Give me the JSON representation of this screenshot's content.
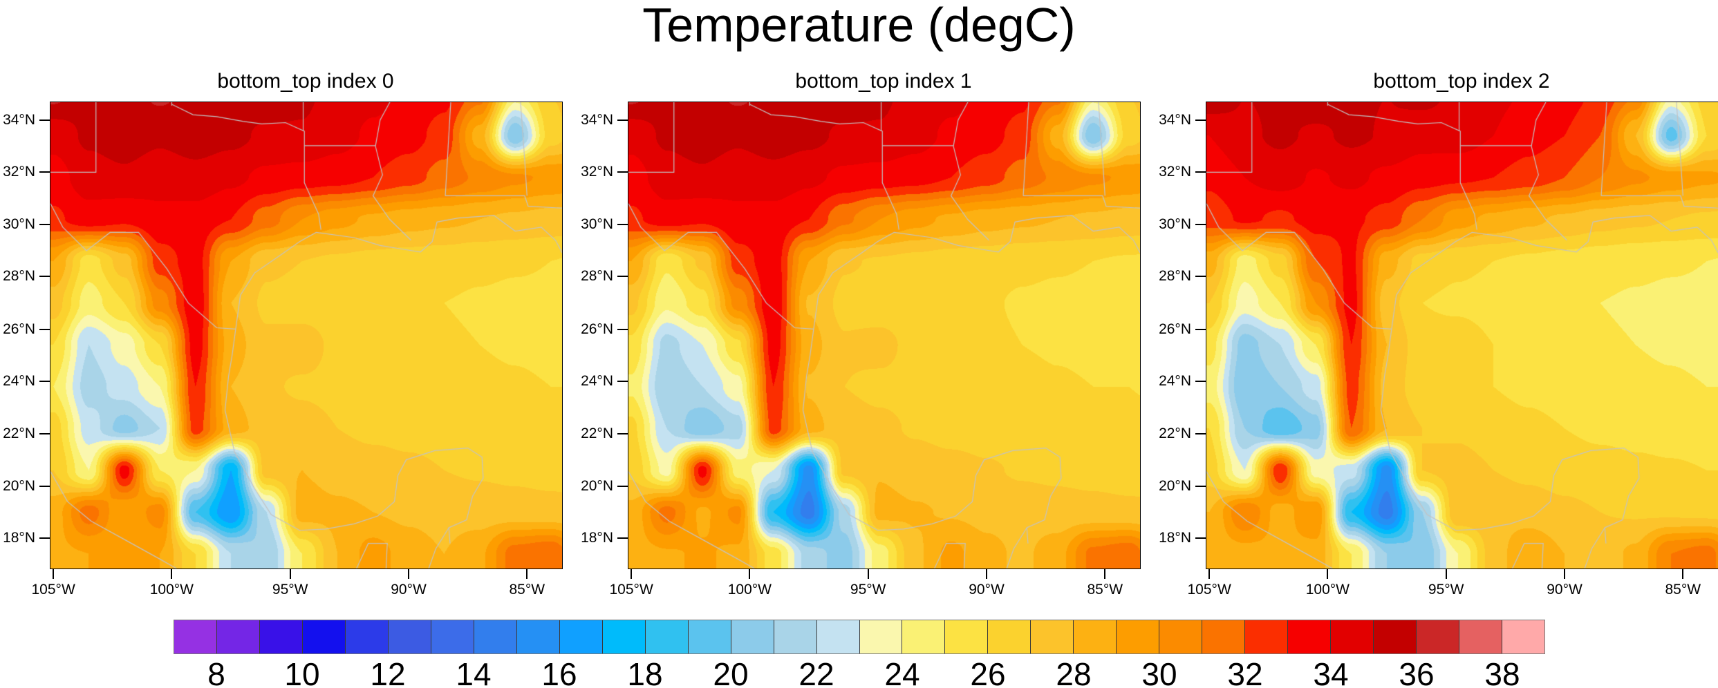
{
  "chart_data": {
    "type": "heatmap",
    "suptitle": "Temperature (degC)",
    "panels": [
      {
        "title": "bottom_top index 0",
        "grid": [
          [
            36.3,
            35.3,
            35.5,
            36.2,
            35.6,
            35.4,
            35.7,
            35.2,
            34.6,
            34.3,
            33.8,
            33.3,
            31.5,
            24.5,
            27.0,
            27.8
          ],
          [
            34.3,
            35.2,
            35.6,
            35.2,
            35.6,
            35.3,
            34.8,
            34.9,
            34.4,
            33.8,
            33.4,
            32.6,
            28.5,
            20.0,
            26.5,
            28.0
          ],
          [
            33.6,
            34.5,
            34.8,
            34.3,
            34.6,
            34.2,
            33.8,
            33.6,
            33.4,
            33.0,
            32.4,
            31.6,
            30.8,
            30.2,
            29.8,
            29.4
          ],
          [
            32.8,
            33.6,
            33.2,
            33.8,
            33.6,
            33.0,
            31.5,
            30.0,
            29.3,
            28.8,
            28.4,
            28.2,
            28.0,
            27.8,
            27.6,
            27.4
          ],
          [
            29.0,
            25.5,
            27.5,
            32.5,
            33.5,
            29.0,
            27.2,
            27.0,
            26.8,
            26.6,
            26.5,
            26.4,
            26.2,
            26.1,
            26.0,
            25.9
          ],
          [
            27.5,
            24.5,
            26.0,
            30.5,
            33.8,
            28.0,
            26.8,
            26.6,
            26.5,
            26.4,
            26.2,
            26.0,
            25.9,
            25.8,
            25.8,
            25.7
          ],
          [
            26.0,
            22.0,
            23.5,
            26.0,
            33.5,
            28.5,
            27.2,
            27.4,
            26.8,
            26.5,
            26.3,
            26.1,
            26.0,
            25.9,
            25.8,
            25.8
          ],
          [
            25.0,
            21.5,
            22.5,
            24.0,
            33.0,
            28.0,
            27.1,
            26.9,
            26.8,
            26.6,
            26.5,
            26.4,
            26.2,
            26.1,
            26.0,
            26.0
          ],
          [
            26.5,
            22.5,
            20.5,
            22.0,
            32.5,
            28.5,
            27.5,
            27.3,
            27.0,
            26.8,
            26.7,
            26.6,
            26.5,
            26.4,
            26.3,
            26.2
          ],
          [
            27.0,
            24.0,
            33.5,
            25.0,
            24.0,
            17.0,
            27.5,
            28.0,
            27.6,
            27.4,
            27.2,
            27.0,
            26.9,
            26.8,
            26.7,
            26.6
          ],
          [
            28.5,
            31.5,
            29.0,
            30.5,
            19.0,
            16.0,
            22.0,
            28.5,
            28.2,
            28.0,
            27.8,
            27.6,
            27.5,
            27.4,
            27.3,
            27.2
          ],
          [
            28.8,
            29.0,
            29.2,
            29.0,
            26.0,
            22.0,
            21.0,
            25.0,
            28.0,
            29.5,
            28.5,
            28.0,
            28.8,
            31.5,
            32.0,
            29.0
          ]
        ]
      },
      {
        "title": "bottom_top index 1",
        "grid": [
          [
            36.3,
            35.3,
            35.5,
            36.2,
            35.6,
            35.4,
            35.7,
            35.2,
            34.6,
            34.3,
            33.8,
            33.3,
            31.5,
            24.5,
            27.0,
            27.8
          ],
          [
            34.3,
            35.2,
            35.6,
            35.2,
            35.6,
            35.3,
            34.8,
            34.9,
            34.4,
            33.8,
            33.4,
            32.6,
            28.5,
            20.0,
            26.5,
            28.0
          ],
          [
            33.6,
            34.5,
            34.8,
            34.3,
            34.6,
            34.2,
            33.8,
            33.6,
            33.4,
            33.0,
            32.4,
            31.6,
            30.8,
            30.2,
            29.8,
            29.4
          ],
          [
            32.8,
            33.6,
            33.2,
            33.8,
            33.6,
            33.0,
            31.2,
            30.0,
            29.3,
            28.8,
            28.4,
            28.2,
            28.0,
            27.8,
            27.6,
            27.4
          ],
          [
            29.0,
            25.2,
            27.2,
            32.5,
            33.6,
            29.0,
            27.1,
            26.9,
            26.7,
            26.5,
            26.4,
            26.2,
            26.1,
            26.0,
            25.9,
            25.8
          ],
          [
            27.3,
            24.2,
            25.6,
            30.4,
            33.9,
            27.9,
            26.7,
            26.5,
            26.4,
            26.2,
            26.1,
            25.9,
            25.8,
            25.7,
            25.7,
            25.6
          ],
          [
            25.8,
            21.6,
            23.0,
            25.8,
            33.5,
            28.4,
            27.1,
            27.3,
            26.7,
            26.4,
            26.2,
            26.0,
            25.9,
            25.8,
            25.8,
            25.7
          ],
          [
            24.8,
            21.0,
            22.0,
            23.6,
            33.0,
            27.9,
            27.0,
            26.8,
            26.7,
            26.5,
            26.4,
            26.3,
            26.1,
            26.0,
            26.0,
            25.9
          ],
          [
            26.3,
            22.0,
            20.0,
            21.5,
            32.5,
            28.4,
            27.4,
            27.2,
            26.9,
            26.7,
            26.6,
            26.5,
            26.4,
            26.3,
            26.2,
            26.1
          ],
          [
            26.8,
            23.6,
            33.4,
            24.5,
            23.0,
            15.5,
            27.3,
            27.9,
            27.5,
            27.3,
            27.1,
            26.9,
            26.8,
            26.7,
            26.6,
            26.5
          ],
          [
            28.3,
            31.4,
            28.8,
            30.3,
            18.0,
            14.5,
            21.5,
            28.4,
            28.1,
            27.9,
            27.7,
            27.5,
            27.4,
            27.3,
            27.2,
            27.1
          ],
          [
            28.6,
            28.9,
            29.1,
            28.8,
            25.5,
            21.5,
            20.5,
            24.5,
            27.8,
            29.3,
            28.3,
            27.8,
            28.6,
            31.3,
            31.8,
            28.8
          ]
        ]
      },
      {
        "title": "bottom_top index 2",
        "grid": [
          [
            35.9,
            35.0,
            35.2,
            35.8,
            35.2,
            35.0,
            35.3,
            34.8,
            34.2,
            33.9,
            33.4,
            32.8,
            31.0,
            24.0,
            26.5,
            27.2
          ],
          [
            34.0,
            34.8,
            35.2,
            34.8,
            35.2,
            34.9,
            34.4,
            34.5,
            34.0,
            33.4,
            33.0,
            32.0,
            28.0,
            19.5,
            26.0,
            27.4
          ],
          [
            33.2,
            34.0,
            34.4,
            33.9,
            34.2,
            33.8,
            33.4,
            33.2,
            33.0,
            32.6,
            32.0,
            31.0,
            30.2,
            29.6,
            29.2,
            28.8
          ],
          [
            32.4,
            33.2,
            32.8,
            33.4,
            33.2,
            32.6,
            31.0,
            29.4,
            28.7,
            28.2,
            27.8,
            27.4,
            27.2,
            27.0,
            26.8,
            26.6
          ],
          [
            28.5,
            24.5,
            26.5,
            32.0,
            33.2,
            28.4,
            26.6,
            26.2,
            26.0,
            25.8,
            25.6,
            25.4,
            25.2,
            25.1,
            25.0,
            24.9
          ],
          [
            27.0,
            23.5,
            25.0,
            30.0,
            33.4,
            27.4,
            26.0,
            25.8,
            25.6,
            25.4,
            25.2,
            25.0,
            24.9,
            24.8,
            24.8,
            24.7
          ],
          [
            25.5,
            20.5,
            22.0,
            25.0,
            33.0,
            28.0,
            26.4,
            26.6,
            26.0,
            25.6,
            25.3,
            25.1,
            25.0,
            24.9,
            24.8,
            24.8
          ],
          [
            24.5,
            20.0,
            21.0,
            22.5,
            32.5,
            27.6,
            26.4,
            26.2,
            26.0,
            25.8,
            25.6,
            25.4,
            25.2,
            25.1,
            25.0,
            25.0
          ],
          [
            26.0,
            21.0,
            19.0,
            20.5,
            32.0,
            28.0,
            27.0,
            26.8,
            26.4,
            26.2,
            26.0,
            25.8,
            25.7,
            25.6,
            25.5,
            25.4
          ],
          [
            26.5,
            23.0,
            33.0,
            23.5,
            22.5,
            15.5,
            27.0,
            27.5,
            27.0,
            26.8,
            26.6,
            26.4,
            26.2,
            26.1,
            26.0,
            26.0
          ],
          [
            28.0,
            31.0,
            28.5,
            30.0,
            18.0,
            14.5,
            21.0,
            28.0,
            27.7,
            27.5,
            27.2,
            27.0,
            26.9,
            26.8,
            26.7,
            26.6
          ],
          [
            28.4,
            28.6,
            28.8,
            28.6,
            25.0,
            21.0,
            20.0,
            24.0,
            27.5,
            29.0,
            28.0,
            27.5,
            28.2,
            31.0,
            31.5,
            28.5
          ]
        ]
      }
    ],
    "grid_lons": [
      -105,
      -103.5,
      -102,
      -100.5,
      -99,
      -97.5,
      -96,
      -94.5,
      -93,
      -91.5,
      -90,
      -88.5,
      -87,
      -85.5,
      -84,
      -82.5
    ],
    "grid_lats": [
      35.0,
      33.4,
      31.8,
      30.2,
      28.6,
      27.0,
      25.4,
      23.8,
      22.2,
      20.6,
      19.0,
      17.4
    ],
    "lon_range": [
      -105.12,
      -83.52
    ],
    "lat_range": [
      34.68,
      16.84
    ],
    "x_axis": {
      "labels": [
        "105°W",
        "100°W",
        "95°W",
        "90°W",
        "85°W"
      ],
      "fractions": [
        0.0056,
        0.237,
        0.4685,
        0.7,
        0.9315
      ]
    },
    "y_axis": {
      "labels": [
        "34°N",
        "32°N",
        "30°N",
        "28°N",
        "26°N",
        "24°N",
        "22°N",
        "20°N",
        "18°N"
      ],
      "fractions": [
        0.038,
        0.15,
        0.262,
        0.374,
        0.487,
        0.599,
        0.711,
        0.823,
        0.935
      ]
    },
    "colorbar": {
      "level_min": 7,
      "level_max": 39,
      "tick_labels": [
        "8",
        "10",
        "12",
        "14",
        "16",
        "18",
        "20",
        "22",
        "24",
        "26",
        "28",
        "30",
        "32",
        "34",
        "36",
        "38"
      ],
      "colors": [
        "#9531E3",
        "#7426E6",
        "#3911E8",
        "#1310EE",
        "#2C3BE9",
        "#3C5BE3",
        "#3C6CE9",
        "#327EED",
        "#2590F4",
        "#10A0FF",
        "#00BBFB",
        "#30C1F0",
        "#5BC3EE",
        "#8CCBEA",
        "#A9D4E8",
        "#C4E2F1",
        "#FAF7AE",
        "#FAF174",
        "#FCE243",
        "#FBD22E",
        "#FCC32B",
        "#FDB112",
        "#FD9D00",
        "#FB8B00",
        "#FA7300",
        "#FB2E00",
        "#F60000",
        "#E20000",
        "#C30000",
        "#CB2727",
        "#E56161",
        "#FFA9A9"
      ]
    },
    "boundary_color": "#c3c3c3",
    "boundaries": [
      [
        [
          -103.2,
          36
        ],
        [
          -103.2,
          32
        ],
        [
          -105.12,
          32
        ]
      ],
      [
        [
          -100,
          35
        ],
        [
          -100,
          34.55
        ]
      ],
      [
        [
          -100,
          34.6
        ],
        [
          -99.1,
          34.2
        ],
        [
          -98.1,
          34.13
        ],
        [
          -97,
          33.95
        ],
        [
          -96.2,
          33.85
        ],
        [
          -95.2,
          33.9
        ],
        [
          -94.4,
          33.57
        ],
        [
          -94.4,
          31.6
        ],
        [
          -93.8,
          30.4
        ],
        [
          -93.7,
          29.8
        ]
      ],
      [
        [
          -94.45,
          35
        ],
        [
          -94.45,
          33.57
        ]
      ],
      [
        [
          -94.4,
          33.02
        ],
        [
          -91.4,
          33.02
        ]
      ],
      [
        [
          -90.6,
          35
        ],
        [
          -91.2,
          34
        ],
        [
          -91.4,
          33
        ],
        [
          -91.1,
          31.9
        ],
        [
          -91.5,
          31.1
        ],
        [
          -90.8,
          30.2
        ],
        [
          -89.9,
          29.4
        ]
      ],
      [
        [
          -88.2,
          35
        ],
        [
          -88.45,
          31.1
        ]
      ],
      [
        [
          -88.45,
          31.1
        ],
        [
          -85.1,
          31.1
        ],
        [
          -84.95,
          30.7
        ],
        [
          -82.9,
          30.6
        ]
      ],
      [
        [
          -85.3,
          35
        ],
        [
          -85.1,
          32.5
        ],
        [
          -85.0,
          31.1
        ]
      ],
      [
        [
          -105.12,
          30.8
        ],
        [
          -104.6,
          29.9
        ],
        [
          -103.6,
          29.0
        ],
        [
          -102.6,
          29.7
        ],
        [
          -101.4,
          29.7
        ],
        [
          -100.2,
          28.3
        ],
        [
          -99.3,
          27.0
        ],
        [
          -98.1,
          26.05
        ],
        [
          -97.3,
          26.0
        ]
      ],
      [
        [
          -97.3,
          26.0
        ],
        [
          -97.1,
          27.3
        ],
        [
          -96.5,
          28.15
        ],
        [
          -95.3,
          28.9
        ],
        [
          -94.6,
          29.35
        ],
        [
          -93.9,
          29.7
        ],
        [
          -92.3,
          29.5
        ],
        [
          -91.2,
          29.2
        ],
        [
          -90.2,
          29.05
        ],
        [
          -89.5,
          28.95
        ],
        [
          -89.0,
          29.35
        ],
        [
          -88.8,
          30.1
        ],
        [
          -87.9,
          30.25
        ],
        [
          -86.4,
          30.35
        ],
        [
          -85.5,
          29.75
        ],
        [
          -84.4,
          29.9
        ],
        [
          -83.8,
          29.4
        ],
        [
          -83.5,
          28.9
        ]
      ],
      [
        [
          -97.3,
          26.0
        ],
        [
          -97.45,
          25.0
        ],
        [
          -97.6,
          24.2
        ],
        [
          -97.75,
          22.9
        ],
        [
          -97.35,
          21.3
        ],
        [
          -96.5,
          19.9
        ],
        [
          -95.8,
          18.9
        ],
        [
          -94.6,
          18.3
        ],
        [
          -93.5,
          18.35
        ],
        [
          -92.3,
          18.55
        ],
        [
          -91.3,
          18.85
        ],
        [
          -90.6,
          19.4
        ],
        [
          -90.45,
          20.4
        ],
        [
          -90.1,
          21.0
        ],
        [
          -88.9,
          21.35
        ],
        [
          -87.5,
          21.45
        ],
        [
          -86.9,
          21.1
        ],
        [
          -86.85,
          20.3
        ],
        [
          -87.3,
          19.6
        ],
        [
          -87.55,
          18.7
        ],
        [
          -88.3,
          18.4
        ],
        [
          -88.25,
          17.8
        ]
      ],
      [
        [
          -105.12,
          20.55
        ],
        [
          -104.4,
          19.4
        ],
        [
          -103.4,
          18.65
        ],
        [
          -101.9,
          17.9
        ],
        [
          -100.5,
          17.2
        ],
        [
          -99.8,
          16.84
        ]
      ],
      [
        [
          -88.3,
          18.4
        ],
        [
          -88.85,
          17.6
        ],
        [
          -89.15,
          16.84
        ]
      ],
      [
        [
          -92.2,
          16.84
        ],
        [
          -91.7,
          17.8
        ],
        [
          -90.9,
          17.8
        ],
        [
          -90.95,
          16.84
        ]
      ]
    ]
  }
}
